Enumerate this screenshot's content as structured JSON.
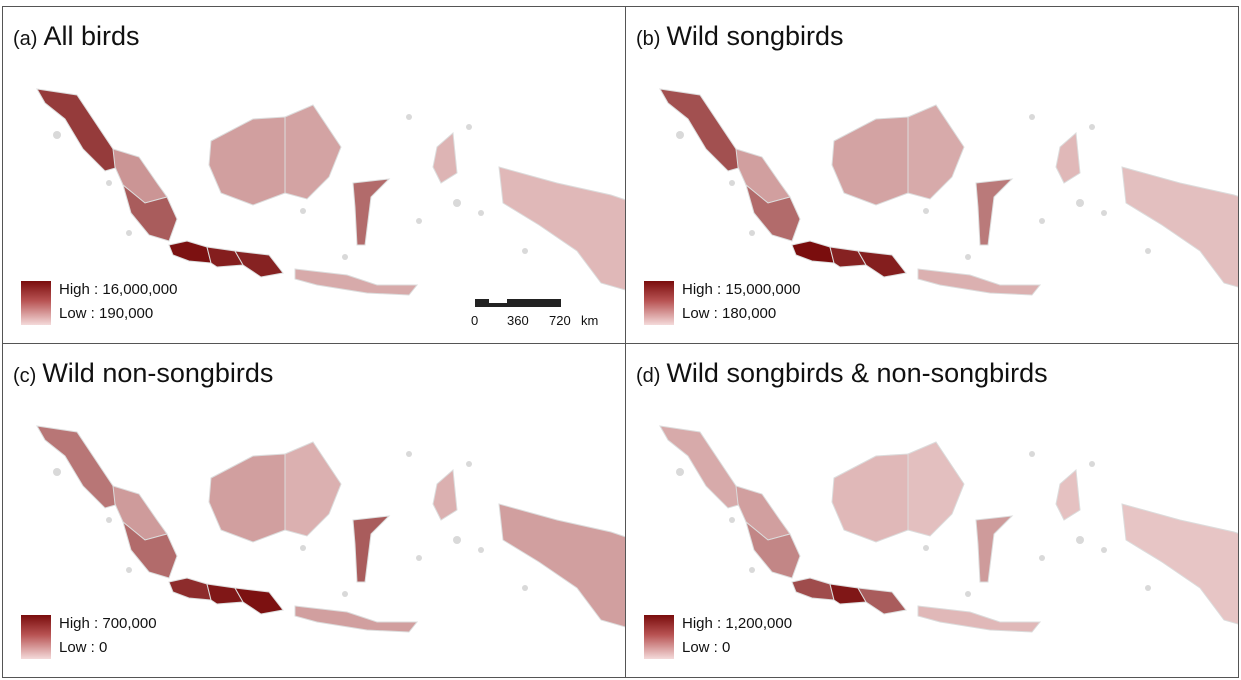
{
  "panels": [
    {
      "id": "a",
      "letter": "(a)",
      "title": "All birds",
      "legend_high": "High : 16,000,000",
      "legend_low": "Low : 190,000",
      "levels": {
        "sum_n": 0.78,
        "sum_c": 0.35,
        "sum_s": 0.62,
        "java_w": 0.98,
        "java_c": 0.92,
        "java_e": 0.9,
        "bor_w": 0.3,
        "bor_e": 0.28,
        "sul": 0.55,
        "pap": 0.18,
        "nt": 0.25,
        "mol": 0.2
      }
    },
    {
      "id": "b",
      "letter": "(b)",
      "title": "Wild songbirds",
      "legend_high": "High : 15,000,000",
      "legend_low": "Low : 180,000",
      "levels": {
        "sum_n": 0.68,
        "sum_c": 0.3,
        "sum_s": 0.55,
        "java_w": 1.0,
        "java_c": 0.9,
        "java_e": 0.92,
        "bor_w": 0.28,
        "bor_e": 0.25,
        "sul": 0.48,
        "pap": 0.15,
        "nt": 0.22,
        "mol": 0.18
      }
    },
    {
      "id": "c",
      "letter": "(c)",
      "title": "Wild non-songbirds",
      "legend_high": "High : 700,000",
      "legend_low": "Low : 0",
      "levels": {
        "sum_n": 0.5,
        "sum_c": 0.32,
        "sum_s": 0.55,
        "java_w": 0.85,
        "java_c": 0.95,
        "java_e": 0.98,
        "bor_w": 0.3,
        "bor_e": 0.22,
        "sul": 0.62,
        "pap": 0.3,
        "nt": 0.3,
        "mol": 0.22
      }
    },
    {
      "id": "d",
      "letter": "(d)",
      "title": "Wild songbirds & non-songbirds",
      "legend_high": "High : 1,200,000",
      "legend_low": "Low : 0",
      "levels": {
        "sum_n": 0.25,
        "sum_c": 0.3,
        "sum_s": 0.42,
        "java_w": 0.7,
        "java_c": 0.95,
        "java_e": 0.62,
        "bor_w": 0.18,
        "bor_e": 0.15,
        "sul": 0.32,
        "pap": 0.12,
        "nt": 0.18,
        "mol": 0.14
      }
    }
  ],
  "scale_bar": {
    "t0": "0",
    "t1": "360",
    "t2": "720",
    "t3": "km"
  },
  "colors": {
    "low": "#f6dede",
    "high": "#7a0d0d",
    "border": "#dcdcdc",
    "no_data": "#d9d9d9"
  }
}
